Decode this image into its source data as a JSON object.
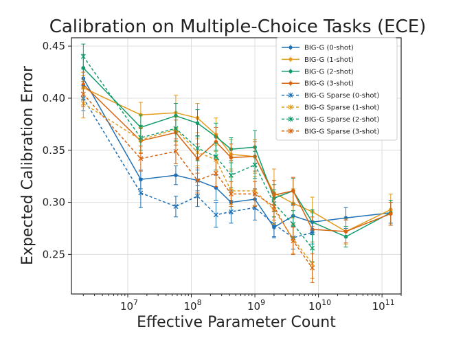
{
  "chart_data": {
    "type": "line",
    "title": "Calibration on Multiple-Choice Tasks (ECE)",
    "xlabel": "Effective Parameter Count",
    "ylabel": "Expected Calibration Error",
    "xscale": "log",
    "xlim": [
      1300000,
      200000000000
    ],
    "ylim": [
      0.212,
      0.458
    ],
    "yticks": [
      0.25,
      0.3,
      0.35,
      0.4,
      0.45
    ],
    "ytick_labels": [
      "0.25",
      "0.30",
      "0.35",
      "0.40",
      "0.45"
    ],
    "xticks": [
      10000000,
      100000000,
      1000000000,
      10000000000,
      100000000000
    ],
    "xtick_labels": [
      "10",
      "10",
      "10",
      "10",
      "10"
    ],
    "xtick_exponents": [
      "7",
      "8",
      "9",
      "10",
      "11"
    ],
    "grid": true,
    "legend_position": "top-right",
    "colors": {
      "blue": "#1f70b5",
      "orange": "#e39b1b",
      "green": "#109b6b",
      "red": "#d6630f"
    },
    "series": [
      {
        "name": "BIG-G (0-shot)",
        "color": "#1f70b5",
        "dashed": false,
        "marker": "dot",
        "x": [
          2000000,
          16000000,
          57000000,
          125000000,
          244000000,
          422000000,
          1000000000,
          2000000000,
          4000000000,
          8000000000,
          27000000000,
          137000000000
        ],
        "y": [
          0.419,
          0.322,
          0.326,
          0.321,
          0.314,
          0.3,
          0.303,
          0.276,
          0.287,
          0.281,
          0.285,
          0.29
        ],
        "err": [
          0.01,
          0.009,
          0.009,
          0.01,
          0.012,
          0.011,
          0.01,
          0.01,
          0.01,
          0.01,
          0.01,
          0.01
        ]
      },
      {
        "name": "BIG-G (1-shot)",
        "color": "#e39b1b",
        "dashed": false,
        "marker": "dot",
        "x": [
          2000000,
          16000000,
          57000000,
          125000000,
          244000000,
          422000000,
          1000000000,
          2000000000,
          4000000000,
          8000000000,
          27000000000,
          137000000000
        ],
        "y": [
          0.41,
          0.384,
          0.386,
          0.381,
          0.365,
          0.346,
          0.344,
          0.309,
          0.299,
          0.291,
          0.272,
          0.293
        ],
        "err": [
          0.012,
          0.012,
          0.017,
          0.014,
          0.016,
          0.014,
          0.016,
          0.023,
          0.014,
          0.014,
          0.012,
          0.015
        ]
      },
      {
        "name": "BIG-G (2-shot)",
        "color": "#109b6b",
        "dashed": false,
        "marker": "dot",
        "x": [
          2000000,
          16000000,
          57000000,
          125000000,
          244000000,
          422000000,
          1000000000,
          2000000000,
          4000000000,
          8000000000,
          27000000000,
          137000000000
        ],
        "y": [
          0.429,
          0.372,
          0.383,
          0.376,
          0.363,
          0.351,
          0.353,
          0.304,
          0.311,
          0.281,
          0.267,
          0.29
        ],
        "err": [
          0.013,
          0.012,
          0.012,
          0.013,
          0.013,
          0.011,
          0.016,
          0.013,
          0.012,
          0.012,
          0.01,
          0.012
        ]
      },
      {
        "name": "BIG-G (3-shot)",
        "color": "#d6630f",
        "dashed": false,
        "marker": "dot",
        "x": [
          2000000,
          16000000,
          57000000,
          125000000,
          244000000,
          422000000,
          1000000000,
          2000000000,
          4000000000,
          8000000000,
          27000000000,
          137000000000
        ],
        "y": [
          0.413,
          0.359,
          0.367,
          0.342,
          0.358,
          0.343,
          0.344,
          0.307,
          0.311,
          0.274,
          0.272,
          0.289
        ],
        "err": [
          0.012,
          0.012,
          0.012,
          0.014,
          0.014,
          0.013,
          0.014,
          0.014,
          0.013,
          0.012,
          0.011,
          0.011
        ]
      },
      {
        "name": "BIG-G Sparse (0-shot)",
        "color": "#1f70b5",
        "dashed": true,
        "marker": "x",
        "x": [
          2000000,
          16000000,
          57000000,
          125000000,
          244000000,
          422000000,
          1000000000,
          2000000000,
          4000000000,
          8000000000
        ],
        "y": [
          0.4,
          0.309,
          0.296,
          0.306,
          0.288,
          0.291,
          0.295,
          0.279,
          0.266,
          0.271
        ],
        "err": [
          0.012,
          0.014,
          0.01,
          0.01,
          0.012,
          0.011,
          0.012,
          0.012,
          0.011,
          0.011
        ]
      },
      {
        "name": "BIG-G Sparse (1-shot)",
        "color": "#e39b1b",
        "dashed": true,
        "marker": "x",
        "x": [
          2000000,
          16000000,
          57000000,
          125000000,
          244000000,
          422000000,
          1000000000,
          2000000000,
          4000000000,
          8000000000
        ],
        "y": [
          0.395,
          0.36,
          0.37,
          0.348,
          0.341,
          0.311,
          0.311,
          0.293,
          0.265,
          0.241
        ],
        "err": [
          0.014,
          0.012,
          0.012,
          0.013,
          0.014,
          0.013,
          0.014,
          0.014,
          0.014,
          0.014
        ]
      },
      {
        "name": "BIG-G Sparse (2-shot)",
        "color": "#109b6b",
        "dashed": true,
        "marker": "x",
        "x": [
          2000000,
          16000000,
          57000000,
          125000000,
          244000000,
          422000000,
          1000000000,
          2000000000,
          4000000000,
          8000000000
        ],
        "y": [
          0.44,
          0.362,
          0.371,
          0.352,
          0.344,
          0.326,
          0.336,
          0.299,
          0.279,
          0.256
        ],
        "err": [
          0.012,
          0.012,
          0.012,
          0.012,
          0.013,
          0.012,
          0.013,
          0.013,
          0.013,
          0.013
        ]
      },
      {
        "name": "BIG-G Sparse (3-shot)",
        "color": "#d6630f",
        "dashed": true,
        "marker": "x",
        "x": [
          2000000,
          16000000,
          57000000,
          125000000,
          244000000,
          422000000,
          1000000000,
          2000000000,
          4000000000,
          8000000000
        ],
        "y": [
          0.404,
          0.342,
          0.349,
          0.321,
          0.328,
          0.308,
          0.308,
          0.296,
          0.263,
          0.237
        ],
        "err": [
          0.012,
          0.012,
          0.012,
          0.012,
          0.013,
          0.012,
          0.012,
          0.013,
          0.013,
          0.014
        ]
      }
    ]
  }
}
